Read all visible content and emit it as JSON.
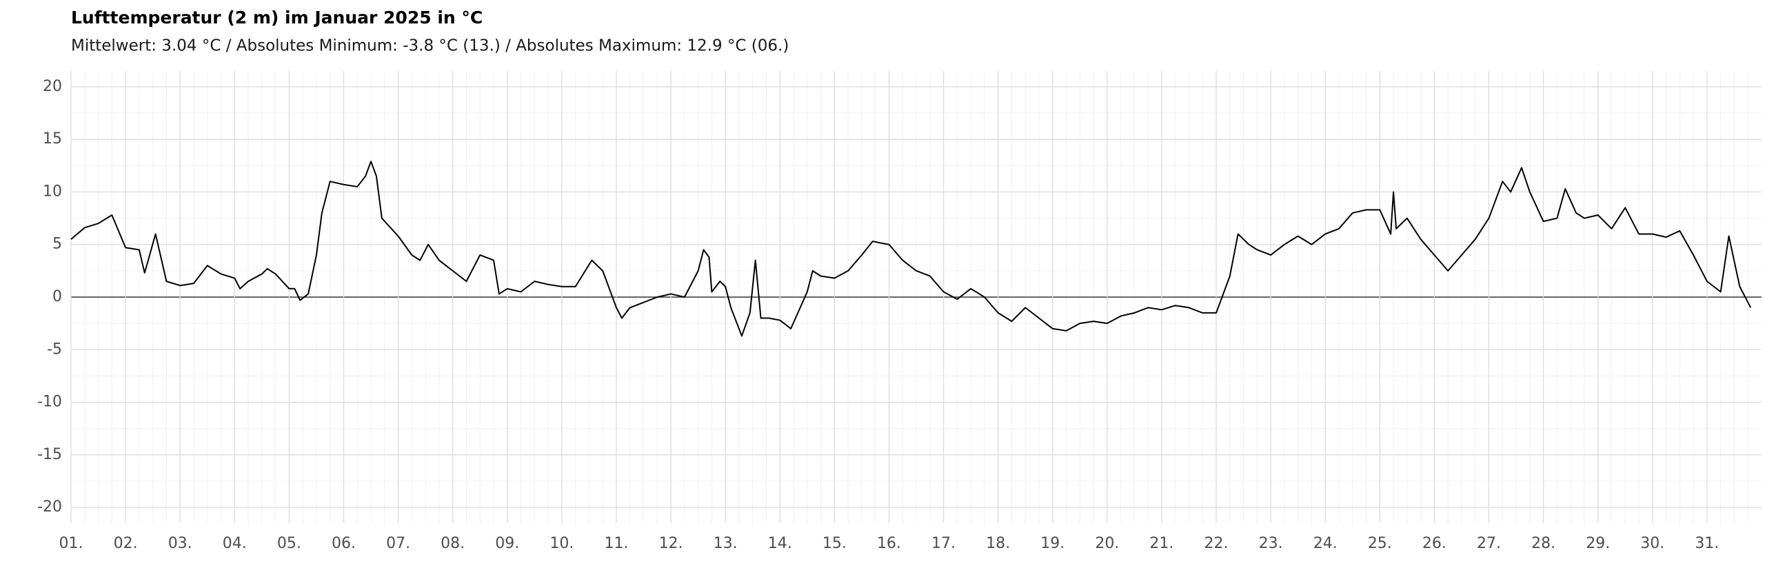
{
  "chart_data": {
    "type": "line",
    "title": "Lufttemperatur (2 m) im Januar 2025 in °C",
    "subtitle": "Mittelwert: 3.04 °C / Absolutes Minimum: -3.8 °C (13.) / Absolutes Maximum: 12.9 °C (06.)",
    "x": [
      1.0,
      1.25,
      1.5,
      1.75,
      2.0,
      2.25,
      2.35,
      2.55,
      2.75,
      3.0,
      3.25,
      3.5,
      3.75,
      4.0,
      4.1,
      4.25,
      4.5,
      4.6,
      4.75,
      5.0,
      5.1,
      5.2,
      5.35,
      5.5,
      5.6,
      5.75,
      6.0,
      6.25,
      6.4,
      6.5,
      6.6,
      6.7,
      7.0,
      7.25,
      7.4,
      7.55,
      7.75,
      8.0,
      8.25,
      8.5,
      8.75,
      8.85,
      9.0,
      9.25,
      9.5,
      9.75,
      10.0,
      10.25,
      10.55,
      10.75,
      11.0,
      11.1,
      11.25,
      11.5,
      11.75,
      12.0,
      12.25,
      12.5,
      12.6,
      12.7,
      12.75,
      12.9,
      13.0,
      13.1,
      13.3,
      13.45,
      13.55,
      13.65,
      13.8,
      14.0,
      14.2,
      14.5,
      14.6,
      14.75,
      15.0,
      15.25,
      15.5,
      15.7,
      16.0,
      16.25,
      16.5,
      16.75,
      17.0,
      17.25,
      17.5,
      17.75,
      18.0,
      18.25,
      18.5,
      18.75,
      19.0,
      19.25,
      19.5,
      19.75,
      20.0,
      20.25,
      20.5,
      20.75,
      21.0,
      21.25,
      21.5,
      21.75,
      22.0,
      22.25,
      22.4,
      22.6,
      22.75,
      23.0,
      23.25,
      23.5,
      23.75,
      24.0,
      24.25,
      24.5,
      24.75,
      25.0,
      25.2,
      25.25,
      25.3,
      25.5,
      25.75,
      26.0,
      26.25,
      26.5,
      26.75,
      27.0,
      27.25,
      27.4,
      27.6,
      27.75,
      28.0,
      28.25,
      28.4,
      28.6,
      28.75,
      29.0,
      29.25,
      29.5,
      29.75,
      30.0,
      30.25,
      30.5,
      30.75,
      31.0,
      31.25,
      31.4,
      31.6,
      31.8
    ],
    "series": [
      {
        "name": "Lufttemperatur",
        "color": "#000000",
        "values": [
          5.5,
          6.6,
          7.0,
          7.8,
          4.7,
          4.5,
          2.3,
          6.0,
          1.5,
          1.1,
          1.3,
          3.0,
          2.2,
          1.8,
          0.8,
          1.5,
          2.2,
          2.7,
          2.2,
          0.8,
          0.8,
          -0.3,
          0.3,
          4.0,
          8.0,
          11.0,
          10.7,
          10.5,
          11.5,
          12.9,
          11.5,
          7.5,
          5.8,
          4.0,
          3.5,
          5.0,
          3.5,
          2.5,
          1.5,
          4.0,
          3.5,
          0.3,
          0.8,
          0.5,
          1.5,
          1.2,
          1.0,
          1.0,
          3.5,
          2.5,
          -1.0,
          -2.0,
          -1.0,
          -0.5,
          0.0,
          0.3,
          0.0,
          2.5,
          4.5,
          3.8,
          0.5,
          1.5,
          1.0,
          -1.0,
          -3.7,
          -1.5,
          3.5,
          -2.0,
          -2.0,
          -2.2,
          -3.0,
          0.5,
          2.5,
          2.0,
          1.8,
          2.5,
          4.0,
          5.3,
          5.0,
          3.5,
          2.5,
          2.0,
          0.5,
          -0.2,
          0.8,
          0.0,
          -1.5,
          -2.3,
          -1.0,
          -2.0,
          -3.0,
          -3.2,
          -2.5,
          -2.3,
          -2.5,
          -1.8,
          -1.5,
          -1.0,
          -1.2,
          -0.8,
          -1.0,
          -1.5,
          -1.5,
          2.0,
          6.0,
          5.0,
          4.5,
          4.0,
          5.0,
          5.8,
          5.0,
          6.0,
          6.5,
          8.0,
          8.3,
          8.3,
          6.0,
          10.0,
          6.5,
          7.5,
          5.5,
          4.0,
          2.5,
          4.0,
          5.5,
          7.5,
          11.0,
          10.0,
          12.3,
          10.0,
          7.2,
          7.5,
          10.3,
          8.0,
          7.5,
          7.8,
          6.5,
          8.5,
          6.0,
          6.0,
          5.7,
          6.3,
          4.0,
          1.5,
          0.5,
          5.8,
          1.0,
          -1.0
        ]
      }
    ],
    "xlim": [
      1,
      32
    ],
    "xticks": [
      {
        "value": 1,
        "label": "01."
      },
      {
        "value": 2,
        "label": "02."
      },
      {
        "value": 3,
        "label": "03."
      },
      {
        "value": 4,
        "label": "04."
      },
      {
        "value": 5,
        "label": "05."
      },
      {
        "value": 6,
        "label": "06."
      },
      {
        "value": 7,
        "label": "07."
      },
      {
        "value": 8,
        "label": "08."
      },
      {
        "value": 9,
        "label": "09."
      },
      {
        "value": 10,
        "label": "10."
      },
      {
        "value": 11,
        "label": "11."
      },
      {
        "value": 12,
        "label": "12."
      },
      {
        "value": 13,
        "label": "13."
      },
      {
        "value": 14,
        "label": "14."
      },
      {
        "value": 15,
        "label": "15."
      },
      {
        "value": 16,
        "label": "16."
      },
      {
        "value": 17,
        "label": "17."
      },
      {
        "value": 18,
        "label": "18."
      },
      {
        "value": 19,
        "label": "19."
      },
      {
        "value": 20,
        "label": "20."
      },
      {
        "value": 21,
        "label": "21."
      },
      {
        "value": 22,
        "label": "22."
      },
      {
        "value": 23,
        "label": "23."
      },
      {
        "value": 24,
        "label": "24."
      },
      {
        "value": 25,
        "label": "25."
      },
      {
        "value": 26,
        "label": "26."
      },
      {
        "value": 27,
        "label": "27."
      },
      {
        "value": 28,
        "label": "28."
      },
      {
        "value": 29,
        "label": "29."
      },
      {
        "value": 30,
        "label": "30."
      },
      {
        "value": 31,
        "label": "31."
      }
    ],
    "ylim": [
      -21.5,
      21.5
    ],
    "yticks": [
      -20,
      -15,
      -10,
      -5,
      0,
      5,
      10,
      15,
      20
    ],
    "grid": true
  }
}
